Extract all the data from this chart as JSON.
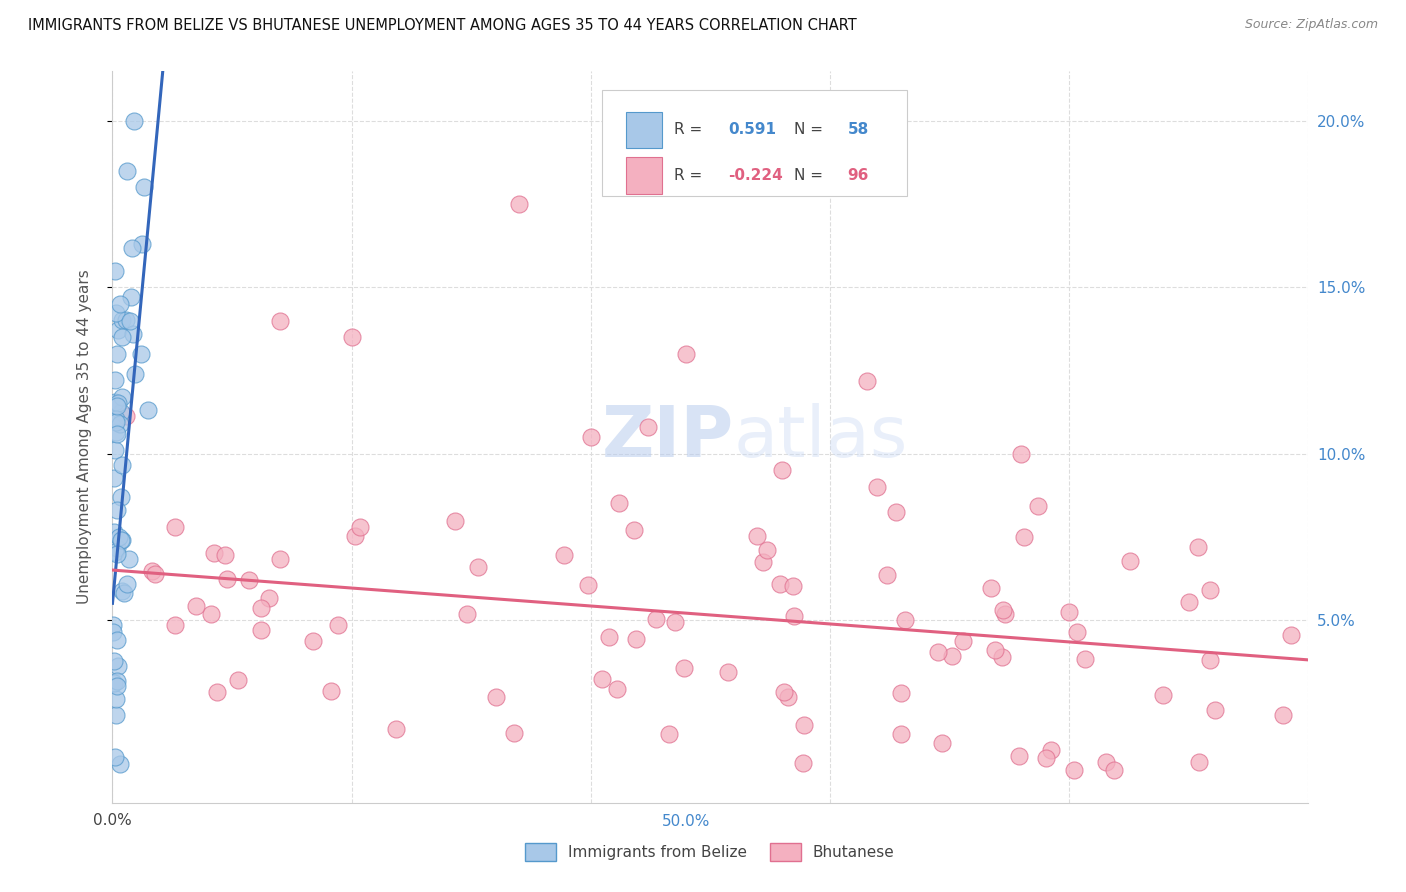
{
  "title": "IMMIGRANTS FROM BELIZE VS BHUTANESE UNEMPLOYMENT AMONG AGES 35 TO 44 YEARS CORRELATION CHART",
  "source": "Source: ZipAtlas.com",
  "ylabel": "Unemployment Among Ages 35 to 44 years",
  "xlim": [
    0,
    0.5
  ],
  "ylim": [
    -0.005,
    0.215
  ],
  "xtick_left": 0.0,
  "xtick_right": 0.5,
  "yticks": [
    0.05,
    0.1,
    0.15,
    0.2
  ],
  "yticklabels": [
    "5.0%",
    "10.0%",
    "15.0%",
    "20.0%"
  ],
  "watermark_zip": "ZIP",
  "watermark_atlas": "atlas",
  "belize_color": "#a8c8e8",
  "belize_edge_color": "#5599cc",
  "bhutanese_color": "#f4b0c0",
  "bhutanese_edge_color": "#e07090",
  "belize_line_color": "#3366bb",
  "bhutanese_line_color": "#e06080",
  "belize_R": "0.591",
  "belize_N": "58",
  "bhutanese_R": "-0.224",
  "bhutanese_N": "96",
  "belize_label": "Immigrants from Belize",
  "bhutanese_label": "Bhutanese",
  "legend_R_color": "#4488cc",
  "legend_N_color": "#4488cc",
  "right_axis_color": "#4488cc",
  "bottom_right_x_color": "#4488cc",
  "belize_trend_x0": 0.0,
  "belize_trend_y0": 0.055,
  "belize_trend_x1": 0.018,
  "belize_trend_y1": 0.21,
  "bhutan_trend_x0": 0.0,
  "bhutan_trend_y0": 0.065,
  "bhutan_trend_x1": 0.5,
  "bhutan_trend_y1": 0.038,
  "grid_color": "#dddddd",
  "grid_style": "--"
}
